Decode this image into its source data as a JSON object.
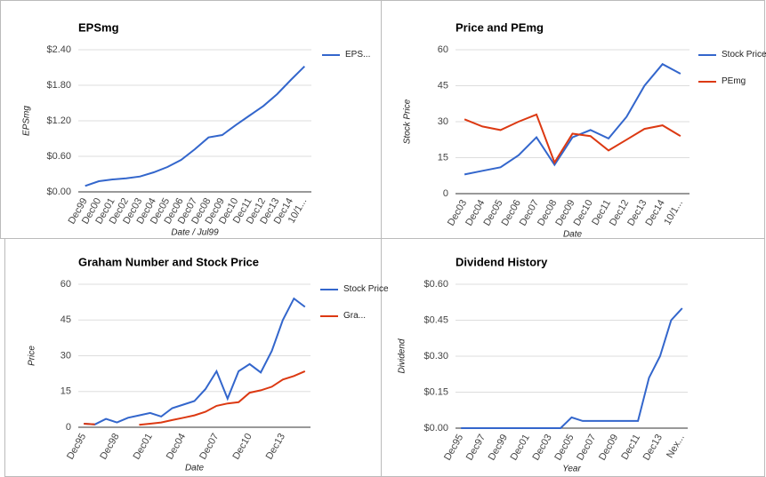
{
  "chart_data": [
    {
      "type": "line",
      "title": "EPSmg",
      "x_label": "Date / Jul99",
      "y_label": "EPSmg",
      "categories": [
        "Dec99",
        "Dec00",
        "Dec01",
        "Dec02",
        "Dec03",
        "Dec04",
        "Dec05",
        "Dec06",
        "Dec07",
        "Dec08",
        "Dec09",
        "Dec10",
        "Dec11",
        "Dec12",
        "Dec13",
        "Dec14",
        "10/1..."
      ],
      "series": [
        {
          "name": "EPS...",
          "color": "#3366cc",
          "values": [
            0.1,
            0.18,
            0.21,
            0.23,
            0.26,
            0.33,
            0.42,
            0.54,
            0.72,
            0.92,
            0.96,
            1.13,
            1.29,
            1.45,
            1.65,
            1.89,
            2.12
          ]
        }
      ],
      "ylim": [
        0,
        2.4
      ],
      "yticks": [
        {
          "value": 0,
          "label": "$0.00"
        },
        {
          "value": 0.6,
          "label": "$0.60"
        },
        {
          "value": 1.2,
          "label": "$1.20"
        },
        {
          "value": 1.8,
          "label": "$1.80"
        },
        {
          "value": 2.4,
          "label": "$2.40"
        }
      ],
      "grid": true,
      "legend": "right"
    },
    {
      "type": "line",
      "title": "Price and PEmg",
      "x_label": "Date",
      "y_label": "Stock Price",
      "categories": [
        "Dec03",
        "Dec04",
        "Dec05",
        "Dec06",
        "Dec07",
        "Dec08",
        "Dec09",
        "Dec10",
        "Dec11",
        "Dec12",
        "Dec13",
        "Dec14",
        "10/1..."
      ],
      "series": [
        {
          "name": "Stock Price",
          "color": "#3366cc",
          "values": [
            8,
            9.5,
            11,
            16,
            23.5,
            12,
            23.5,
            26.5,
            23,
            32,
            45,
            54,
            50
          ]
        },
        {
          "name": "PEmg",
          "color": "#dc3912",
          "values": [
            31,
            28,
            26.5,
            30,
            33,
            13,
            25,
            24,
            18,
            22.5,
            27,
            28.5,
            24
          ]
        }
      ],
      "ylim": [
        0,
        60
      ],
      "yticks": [
        0,
        15,
        30,
        45,
        60
      ],
      "grid": true,
      "legend": "right"
    },
    {
      "type": "line",
      "title": "Graham Number and Stock Price",
      "x_label": "Date",
      "y_label": "Price",
      "categories": [
        "Dec95",
        null,
        null,
        "Dec98",
        null,
        null,
        "Dec01",
        null,
        null,
        "Dec04",
        null,
        null,
        "Dec07",
        null,
        null,
        "Dec10",
        null,
        null,
        "Dec13",
        null,
        null
      ],
      "series": [
        {
          "name": "Stock Price",
          "color": "#3366cc",
          "values": [
            1.5,
            1.2,
            3.5,
            2,
            4,
            5,
            6,
            4.5,
            8,
            9.5,
            11,
            16,
            23.5,
            12,
            23.5,
            26.5,
            23,
            32,
            45,
            54,
            50.5
          ]
        },
        {
          "name": "Gra...",
          "color": "#dc3912",
          "values": [
            1.5,
            1.2,
            null,
            null,
            null,
            1,
            1.5,
            2,
            3,
            4,
            5,
            6.5,
            9,
            10,
            10.5,
            14.5,
            15.5,
            17,
            20,
            21.5,
            23.5
          ]
        }
      ],
      "ylim": [
        0,
        60
      ],
      "yticks": [
        0,
        15,
        30,
        45,
        60
      ],
      "grid": true,
      "legend": "right"
    },
    {
      "type": "line",
      "title": "Dividend History",
      "x_label": "Year",
      "y_label": "Dividend",
      "categories": [
        "Dec95",
        null,
        "Dec97",
        null,
        "Dec99",
        null,
        "Dec01",
        null,
        "Dec03",
        null,
        "Dec05",
        null,
        "Dec07",
        null,
        "Dec09",
        null,
        "Dec11",
        null,
        "Dec13",
        null,
        "Nex..."
      ],
      "series": [
        {
          "color": "#3366cc",
          "values": [
            0,
            0,
            0,
            0,
            0,
            0,
            0,
            0,
            0,
            0,
            0.045,
            0.03,
            0.03,
            0.03,
            0.03,
            0.03,
            0.03,
            0.21,
            0.3,
            0.45,
            0.5
          ]
        }
      ],
      "ylim": [
        0,
        0.6
      ],
      "yticks": [
        {
          "value": 0,
          "label": "$0.00"
        },
        {
          "value": 0.15,
          "label": "$0.15"
        },
        {
          "value": 0.3,
          "label": "$0.30"
        },
        {
          "value": 0.45,
          "label": "$0.45"
        },
        {
          "value": 0.6,
          "label": "$0.60"
        }
      ],
      "grid": true
    }
  ]
}
